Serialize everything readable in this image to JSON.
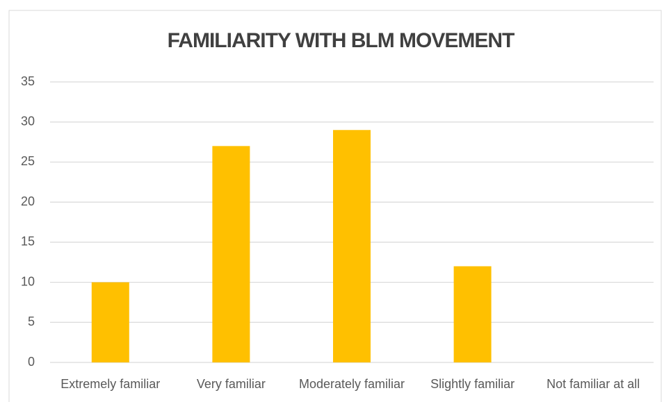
{
  "chart_data": {
    "type": "bar",
    "title": "FAMILIARITY WITH BLM MOVEMENT",
    "categories": [
      "Extremely familiar",
      "Very familiar",
      "Moderately familiar",
      "Slightly familiar",
      "Not familiar at all"
    ],
    "values": [
      10,
      27,
      29,
      12,
      0
    ],
    "color": "#ffc000",
    "ylim": [
      0,
      35
    ],
    "yticks": [
      0,
      5,
      10,
      15,
      20,
      25,
      30,
      35
    ],
    "grid": true
  }
}
